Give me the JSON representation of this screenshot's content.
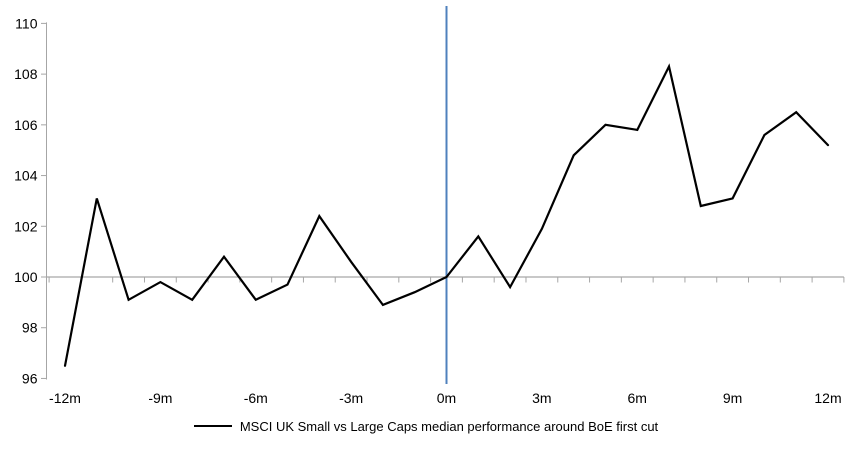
{
  "chart_data": {
    "type": "line",
    "title": "",
    "legend": "MSCI UK Small vs Large Caps median performance around BoE first cut",
    "x": [
      -12,
      -11,
      -10,
      -9,
      -8,
      -7,
      -6,
      -5,
      -4,
      -3,
      -2,
      -1,
      0,
      1,
      2,
      3,
      4,
      5,
      6,
      7,
      8,
      9,
      10,
      11,
      12
    ],
    "series": [
      {
        "name": "MSCI UK Small vs Large Caps median performance around BoE first cut",
        "color": "#000000",
        "values": [
          96.5,
          103.1,
          99.1,
          99.8,
          99.1,
          100.8,
          99.1,
          99.7,
          102.4,
          100.6,
          98.9,
          99.4,
          100.0,
          101.6,
          99.6,
          101.9,
          104.8,
          106.0,
          105.8,
          108.3,
          102.8,
          103.1,
          105.6,
          106.5,
          105.2
        ]
      }
    ],
    "xlim": [
      -12,
      12
    ],
    "ylim": [
      96,
      110
    ],
    "y_ticks": [
      96,
      98,
      100,
      102,
      104,
      106,
      108,
      110
    ],
    "x_tick_positions": [
      -12,
      -9,
      -6,
      -3,
      0,
      3,
      6,
      9,
      12
    ],
    "x_tick_labels": [
      "-12m",
      "-9m",
      "-6m",
      "-3m",
      "0m",
      "3m",
      "6m",
      "9m",
      "12m"
    ],
    "event_line": {
      "x": 0,
      "color": "#4F81BD"
    },
    "axis_crosses_at_y": 100,
    "axis_color": "#A6A6A6",
    "grid": false,
    "legend_position": "bottom-center",
    "label_color": "#000000"
  }
}
